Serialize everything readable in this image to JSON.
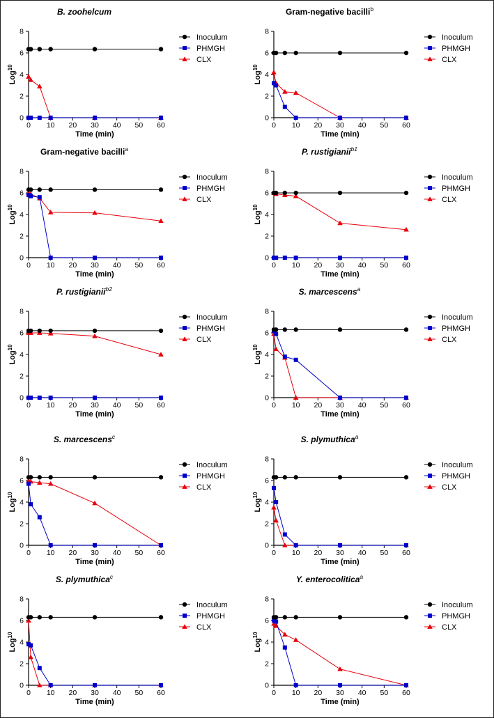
{
  "series_styles": [
    {
      "name": "Inoculum",
      "color": "#000000",
      "marker": "circle"
    },
    {
      "name": "PHMGH",
      "color": "#0000cc",
      "marker": "square"
    },
    {
      "name": "CLX",
      "color": "#e8000b",
      "marker": "triangle"
    }
  ],
  "chart_data": [
    {
      "type": "line",
      "title": "B. zoohelcum",
      "title_italic": true,
      "title_sup": "",
      "xlabel": "Time (min)",
      "ylabel": "Log",
      "ylabel_sup": "10",
      "xlim": [
        0,
        60
      ],
      "ylim": [
        0,
        8
      ],
      "xticks": [
        0,
        10,
        20,
        30,
        40,
        50,
        60
      ],
      "yticks": [
        0,
        2,
        4,
        6,
        8
      ],
      "x": [
        0,
        1,
        5,
        10,
        30,
        60
      ],
      "series": [
        {
          "name": "Inoculum",
          "values": [
            6.35,
            6.35,
            6.35,
            6.35,
            6.35,
            6.35
          ]
        },
        {
          "name": "PHMGH",
          "values": [
            0,
            0,
            0,
            0,
            0,
            0
          ]
        },
        {
          "name": "CLX",
          "values": [
            3.8,
            3.5,
            2.9,
            0,
            0,
            0
          ]
        }
      ]
    },
    {
      "type": "line",
      "title": "Gram-negative bacilli",
      "title_italic": false,
      "title_sup": "b",
      "xlabel": "Time (min)",
      "ylabel": "Log",
      "ylabel_sup": "10",
      "xlim": [
        0,
        60
      ],
      "ylim": [
        0,
        8
      ],
      "xticks": [
        0,
        10,
        20,
        30,
        40,
        50,
        60
      ],
      "yticks": [
        0,
        2,
        4,
        6,
        8
      ],
      "x": [
        0,
        1,
        5,
        10,
        30,
        60
      ],
      "series": [
        {
          "name": "Inoculum",
          "values": [
            6.0,
            6.0,
            6.0,
            6.0,
            6.0,
            6.0
          ]
        },
        {
          "name": "PHMGH",
          "values": [
            3.2,
            3.0,
            1.0,
            0,
            0,
            0
          ]
        },
        {
          "name": "CLX",
          "values": [
            4.2,
            3.2,
            2.4,
            2.3,
            0,
            0
          ]
        }
      ]
    },
    {
      "type": "line",
      "title": "Gram-negative bacilli",
      "title_italic": false,
      "title_sup": "a",
      "xlabel": "Time (min)",
      "ylabel": "Log",
      "ylabel_sup": "10",
      "xlim": [
        0,
        60
      ],
      "ylim": [
        0,
        8
      ],
      "xticks": [
        0,
        10,
        20,
        30,
        40,
        50,
        60
      ],
      "yticks": [
        0,
        2,
        4,
        6,
        8
      ],
      "x": [
        0,
        1,
        5,
        10,
        30,
        60
      ],
      "series": [
        {
          "name": "Inoculum",
          "values": [
            6.3,
            6.3,
            6.3,
            6.3,
            6.3,
            6.3
          ]
        },
        {
          "name": "PHMGH",
          "values": [
            5.8,
            5.7,
            5.6,
            0,
            0,
            0
          ]
        },
        {
          "name": "CLX",
          "values": [
            6.0,
            5.9,
            5.5,
            4.2,
            4.15,
            3.4
          ]
        }
      ]
    },
    {
      "type": "line",
      "title": "P. rustigianii",
      "title_italic": true,
      "title_sup": "b1",
      "xlabel": "Time (min)",
      "ylabel": "Log",
      "ylabel_sup": "10",
      "xlim": [
        0,
        60
      ],
      "ylim": [
        0,
        8
      ],
      "xticks": [
        0,
        10,
        20,
        30,
        40,
        50,
        60
      ],
      "yticks": [
        0,
        2,
        4,
        6,
        8
      ],
      "x": [
        0,
        1,
        5,
        10,
        30,
        60
      ],
      "series": [
        {
          "name": "Inoculum",
          "values": [
            6.0,
            6.0,
            6.0,
            6.0,
            6.0,
            6.0
          ]
        },
        {
          "name": "PHMGH",
          "values": [
            0,
            0,
            0,
            0,
            0,
            0
          ]
        },
        {
          "name": "CLX",
          "values": [
            6.0,
            5.9,
            5.8,
            5.7,
            3.2,
            2.6
          ]
        }
      ]
    },
    {
      "type": "line",
      "title": "P. rustigianii",
      "title_italic": true,
      "title_sup": "b2",
      "xlabel": "Time (min)",
      "ylabel": "Log",
      "ylabel_sup": "10",
      "xlim": [
        0,
        60
      ],
      "ylim": [
        0,
        8
      ],
      "xticks": [
        0,
        10,
        20,
        30,
        40,
        50,
        60
      ],
      "yticks": [
        0,
        2,
        4,
        6,
        8
      ],
      "x": [
        0,
        1,
        5,
        10,
        30,
        60
      ],
      "series": [
        {
          "name": "Inoculum",
          "values": [
            6.2,
            6.2,
            6.2,
            6.2,
            6.2,
            6.2
          ]
        },
        {
          "name": "PHMGH",
          "values": [
            0,
            0,
            0,
            0,
            0,
            0
          ]
        },
        {
          "name": "CLX",
          "values": [
            6.0,
            6.0,
            6.0,
            5.95,
            5.7,
            4.0
          ]
        }
      ]
    },
    {
      "type": "line",
      "title": "S. marcescens",
      "title_italic": true,
      "title_sup": "a",
      "xlabel": "Time (min)",
      "ylabel": "Log",
      "ylabel_sup": "10",
      "xlim": [
        0,
        60
      ],
      "ylim": [
        0,
        8
      ],
      "xticks": [
        0,
        10,
        20,
        30,
        40,
        50,
        60
      ],
      "yticks": [
        0,
        2,
        4,
        6,
        8
      ],
      "x": [
        0,
        1,
        5,
        10,
        30,
        60
      ],
      "series": [
        {
          "name": "Inoculum",
          "values": [
            6.3,
            6.3,
            6.3,
            6.3,
            6.3,
            6.3
          ]
        },
        {
          "name": "PHMGH",
          "values": [
            6.2,
            5.9,
            3.8,
            3.5,
            0,
            0
          ]
        },
        {
          "name": "CLX",
          "values": [
            5.9,
            4.5,
            3.7,
            0,
            0,
            0
          ]
        }
      ]
    },
    {
      "type": "line",
      "title": "S. marcescens",
      "title_italic": true,
      "title_sup": "c",
      "xlabel": "Time (min)",
      "ylabel": "Log",
      "ylabel_sup": "10",
      "xlim": [
        0,
        60
      ],
      "ylim": [
        0,
        8
      ],
      "xticks": [
        0,
        10,
        20,
        30,
        40,
        50,
        60
      ],
      "yticks": [
        0,
        2,
        4,
        6,
        8
      ],
      "x": [
        0,
        1,
        5,
        10,
        30,
        60
      ],
      "series": [
        {
          "name": "Inoculum",
          "values": [
            6.3,
            6.3,
            6.3,
            6.3,
            6.3,
            6.3
          ]
        },
        {
          "name": "PHMGH",
          "values": [
            5.7,
            3.8,
            2.6,
            0,
            0,
            0
          ]
        },
        {
          "name": "CLX",
          "values": [
            6.0,
            5.9,
            5.8,
            5.7,
            3.9,
            0
          ]
        }
      ]
    },
    {
      "type": "line",
      "title": "S. plymuthica",
      "title_italic": true,
      "title_sup": "a",
      "xlabel": "Time (min)",
      "ylabel": "Log",
      "ylabel_sup": "10",
      "xlim": [
        0,
        60
      ],
      "ylim": [
        0,
        8
      ],
      "xticks": [
        0,
        10,
        20,
        30,
        40,
        50,
        60
      ],
      "yticks": [
        0,
        2,
        4,
        6,
        8
      ],
      "x": [
        0,
        1,
        5,
        10,
        30,
        60
      ],
      "series": [
        {
          "name": "Inoculum",
          "values": [
            6.3,
            6.3,
            6.3,
            6.3,
            6.3,
            6.3
          ]
        },
        {
          "name": "PHMGH",
          "values": [
            5.3,
            4.0,
            1.0,
            0,
            0,
            0
          ]
        },
        {
          "name": "CLX",
          "values": [
            3.5,
            2.3,
            0,
            0,
            0,
            0
          ]
        }
      ]
    },
    {
      "type": "line",
      "title": "S. plymuthica",
      "title_italic": true,
      "title_sup": "c",
      "xlabel": "Time (min)",
      "ylabel": "Log",
      "ylabel_sup": "10",
      "xlim": [
        0,
        60
      ],
      "ylim": [
        0,
        8
      ],
      "xticks": [
        0,
        10,
        20,
        30,
        40,
        50,
        60
      ],
      "yticks": [
        0,
        2,
        4,
        6,
        8
      ],
      "x": [
        0,
        1,
        5,
        10,
        30,
        60
      ],
      "series": [
        {
          "name": "Inoculum",
          "values": [
            6.3,
            6.3,
            6.3,
            6.3,
            6.3,
            6.3
          ]
        },
        {
          "name": "PHMGH",
          "values": [
            3.8,
            3.7,
            1.6,
            0,
            0,
            0
          ]
        },
        {
          "name": "CLX",
          "values": [
            6.0,
            2.6,
            0,
            0,
            0,
            0
          ]
        }
      ]
    },
    {
      "type": "line",
      "title": "Y. enterocolitica",
      "title_italic": true,
      "title_sup": "a",
      "xlabel": "Time (min)",
      "ylabel": "Log",
      "ylabel_sup": "10",
      "xlim": [
        0,
        60
      ],
      "ylim": [
        0,
        8
      ],
      "xticks": [
        0,
        10,
        20,
        30,
        40,
        50,
        60
      ],
      "yticks": [
        0,
        2,
        4,
        6,
        8
      ],
      "x": [
        0,
        1,
        5,
        10,
        30,
        60
      ],
      "series": [
        {
          "name": "Inoculum",
          "values": [
            6.3,
            6.3,
            6.3,
            6.3,
            6.3,
            6.3
          ]
        },
        {
          "name": "PHMGH",
          "values": [
            6.0,
            5.9,
            3.5,
            0,
            0,
            0
          ]
        },
        {
          "name": "CLX",
          "values": [
            5.7,
            5.5,
            4.7,
            4.2,
            1.5,
            0
          ]
        }
      ]
    }
  ]
}
